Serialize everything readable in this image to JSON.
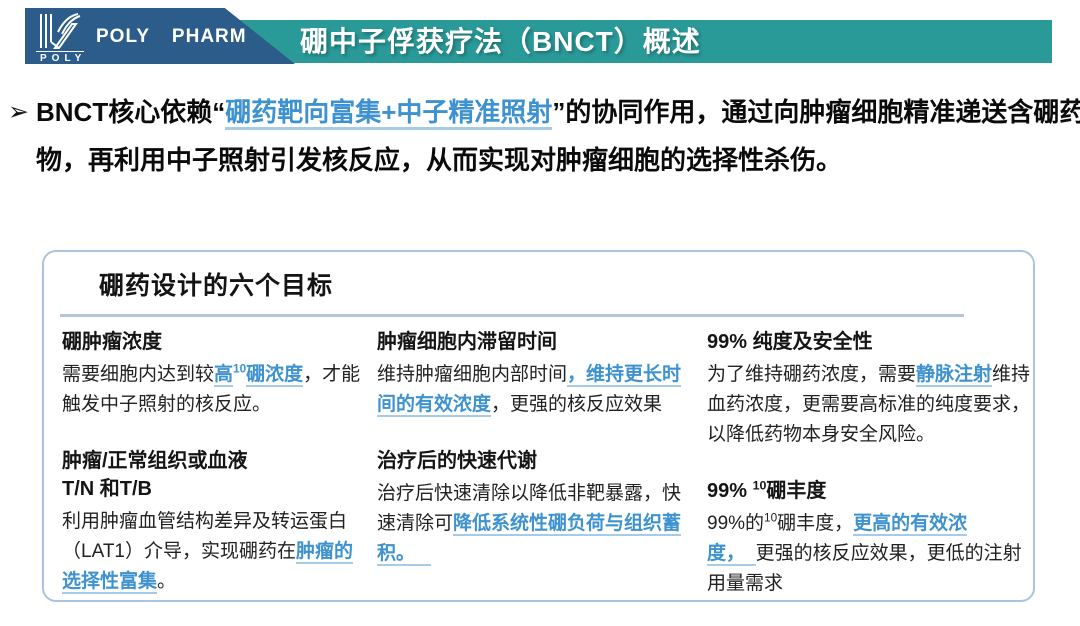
{
  "header": {
    "brand": "POLY PHARM",
    "logo_caption": "POLY",
    "title": "硼中子俘获疗法（BNCT）概述"
  },
  "intro": {
    "bullet": "➢",
    "segments": [
      {
        "text": "BNCT核心依赖“",
        "style": "plain"
      },
      {
        "text": "硼药靶向富集+中子精准照射",
        "style": "link"
      },
      {
        "text": "”的协同作用，通过向肿瘤细胞精准递送含硼药物，再利用中子照射引发核反应，从而实现对肿瘤细胞的选择性杀伤。",
        "style": "plain"
      }
    ]
  },
  "goals_box": {
    "title": "硼药设计的六个目标",
    "columns": [
      {
        "items": [
          {
            "title_segments": [
              {
                "text": "硼肿瘤浓度",
                "style": "plain"
              }
            ],
            "body_segments": [
              {
                "text": "需要细胞内达到较",
                "style": "plain"
              },
              {
                "text": "高",
                "style": "link"
              },
              {
                "text": "10",
                "style": "link-sup"
              },
              {
                "text": "硼浓度",
                "style": "link"
              },
              {
                "text": "，才能触发中子照射的核反应。",
                "style": "plain"
              }
            ]
          },
          {
            "title_segments": [
              {
                "text": "肿瘤/正常组织或血液\nT/N 和T/B",
                "style": "plain"
              }
            ],
            "body_segments": [
              {
                "text": "利用肿瘤血管结构差异及转运蛋白（LAT1）介导，实现硼药在",
                "style": "plain"
              },
              {
                "text": "肿瘤的选择性富集",
                "style": "link"
              },
              {
                "text": "。",
                "style": "plain"
              }
            ]
          }
        ]
      },
      {
        "items": [
          {
            "title_segments": [
              {
                "text": "肿瘤细胞内滞留时间",
                "style": "plain"
              }
            ],
            "body_segments": [
              {
                "text": "维持肿瘤细胞内部时间",
                "style": "plain"
              },
              {
                "text": "，维持更长时间的有效浓度",
                "style": "link"
              },
              {
                "text": "，更强的核反应效果",
                "style": "plain"
              }
            ]
          },
          {
            "title_segments": [
              {
                "text": "治疗后的快速代谢",
                "style": "plain"
              }
            ],
            "body_segments": [
              {
                "text": "治疗后快速清除以降低非靶暴露，快速清除可",
                "style": "plain"
              },
              {
                "text": "降低系统性硼负荷与组织蓄积。   ",
                "style": "link"
              }
            ]
          }
        ]
      },
      {
        "items": [
          {
            "title_segments": [
              {
                "text": "99% 纯度及安全性",
                "style": "plain"
              }
            ],
            "body_segments": [
              {
                "text": "为了维持硼药浓度，需要",
                "style": "plain"
              },
              {
                "text": "静脉注射",
                "style": "link"
              },
              {
                "text": "维持血药浓度，更需要高标准的纯度要求，以降低药物本身安全风险。",
                "style": "plain"
              }
            ]
          },
          {
            "title_segments": [
              {
                "text": "99% ",
                "style": "plain"
              },
              {
                "text": "10",
                "style": "sup"
              },
              {
                "text": "硼丰度",
                "style": "plain"
              }
            ],
            "body_segments": [
              {
                "text": "99%的",
                "style": "plain"
              },
              {
                "text": "10",
                "style": "sup"
              },
              {
                "text": "硼丰度，",
                "style": "plain"
              },
              {
                "text": "更高的有效浓度，  ",
                "style": "link"
              },
              {
                "text": "更强的核反应效果，更低的注射用量需求",
                "style": "plain"
              }
            ]
          }
        ]
      }
    ]
  },
  "colors": {
    "navy": "#2b5c8a",
    "teal": "#2a9a99",
    "link_blue": "#3e92cf",
    "link_underline": "#a6cbe7",
    "box_border": "#a9c4e0",
    "divider": "#b3c5da"
  }
}
